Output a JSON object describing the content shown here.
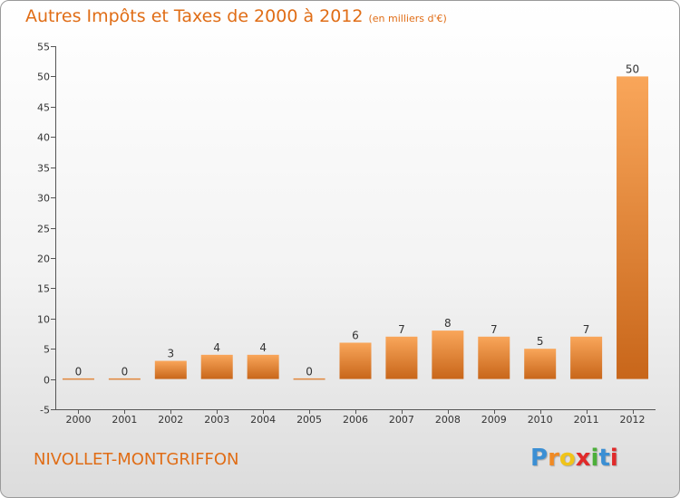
{
  "title": "Autres Impôts et Taxes de 2000 à 2012",
  "title_unit": "(en milliers d'€)",
  "commune": "NIVOLLET-MONTGRIFFON",
  "logo": {
    "letters": [
      "P",
      "r",
      "o",
      "x",
      "i",
      "t",
      "i"
    ],
    "colors": [
      "#3b8fd4",
      "#f08a24",
      "#f0c419",
      "#e02a2a",
      "#4caf3a",
      "#3b8fd4",
      "#e02a2a"
    ]
  },
  "colors": {
    "accent": "#e06d16",
    "bar_light": "#f9a65a",
    "bar_dark": "#c8661a"
  },
  "chart_data": {
    "type": "bar",
    "title": "Autres Impôts et Taxes de 2000 à 2012",
    "subtitle": "(en milliers d'€)",
    "xlabel": "",
    "ylabel": "",
    "categories": [
      "2000",
      "2001",
      "2002",
      "2003",
      "2004",
      "2005",
      "2006",
      "2007",
      "2008",
      "2009",
      "2010",
      "2011",
      "2012"
    ],
    "values": [
      0,
      0,
      3,
      4,
      4,
      0,
      6,
      7,
      8,
      7,
      5,
      7,
      50
    ],
    "data_labels": [
      "0",
      "0",
      "3",
      "4",
      "4",
      "0",
      "6",
      "7",
      "8",
      "7",
      "5",
      "7",
      "50"
    ],
    "ylim": [
      -5,
      55
    ],
    "yticks": [
      -5,
      0,
      5,
      10,
      15,
      20,
      25,
      30,
      35,
      40,
      45,
      50,
      55
    ],
    "grid": false,
    "legend": "none"
  }
}
